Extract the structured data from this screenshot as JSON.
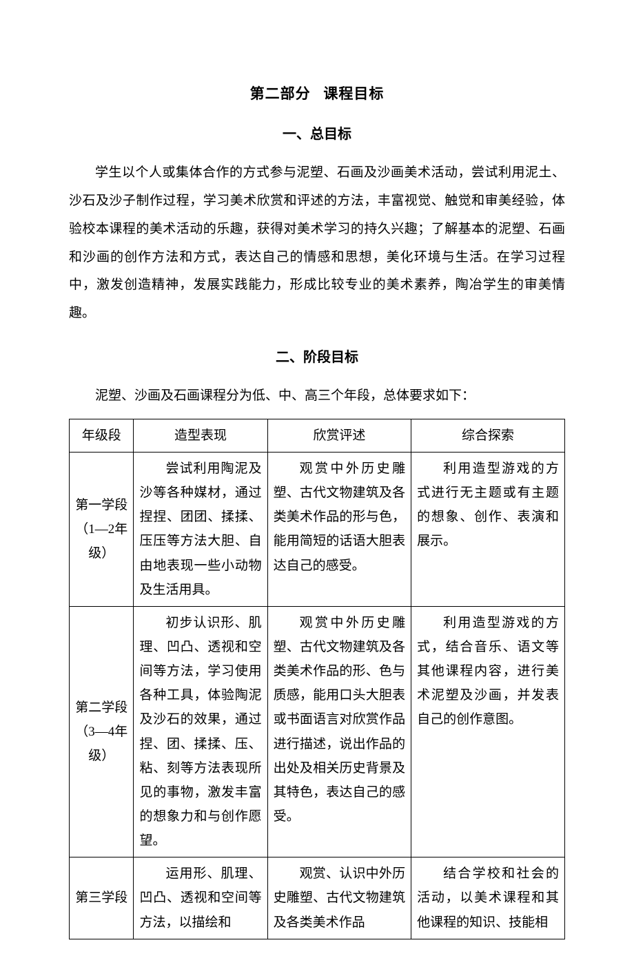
{
  "title_part": "第二部分",
  "title_main": "课程目标",
  "section1_title": "一、总目标",
  "section1_body": "学生以个人或集体合作的方式参与泥塑、石画及沙画美术活动，尝试利用泥土、沙石及沙子制作过程，学习美术欣赏和评述的方法，丰富视觉、触觉和审美经验，体验校本课程的美术活动的乐趣，获得对美术学习的持久兴趣；了解基本的泥塑、石画和沙画的创作方法和方式，表达自己的情感和思想，美化环境与生活。在学习过程中，激发创造精神，发展实践能力，形成比较专业的美术素养，陶冶学生的审美情趣。",
  "section2_title": "二、阶段目标",
  "section2_intro": "泥塑、沙画及石画课程分为低、中、高三个年段，总体要求如下：",
  "table": {
    "headers": [
      "年级段",
      "造型表现",
      "欣赏评述",
      "综合探索"
    ],
    "rows": [
      {
        "grade": "第一学段（1—2年级）",
        "col1": "尝试利用陶泥及沙等各种媒材，通过捏捏、团团、揉揉、压压等方法大胆、自由地表现一些小动物及生活用具。",
        "col2": "观赏中外历史雕塑、古代文物建筑及各类美术作品的形与色，能用简短的话语大胆表达自己的感受。",
        "col3": "利用造型游戏的方式进行无主题或有主题的想象、创作、表演和展示。"
      },
      {
        "grade": "第二学段（3—4年级）",
        "col1": "初步认识形、肌理、凹凸、透视和空间等方法，学习使用各种工具，体验陶泥及沙石的效果，通过捏、团、揉揉、压、粘、刻等方法表现所见的事物，激发丰富的想象力和与创作愿望。",
        "col2": "观赏中外历史雕塑、古代文物建筑及各类美术作品的形、色与质感，能用口头大胆表或书面语言对欣赏作品进行描述，说出作品的出处及相关历史背景及其特色，表达自己的感受。",
        "col3": "利用造型游戏的方式，结合音乐、语文等其他课程内容，进行美术泥塑及沙画，并发表自己的创作意图。"
      },
      {
        "grade": "第三学段",
        "col1": "运用形、肌理、凹凸、透视和空间等方法，以描绘和",
        "col2": "观赏、认识中外历史雕塑、古代文物建筑及各类美术作品",
        "col3": "结合学校和社会的活动，以美术课程和其他课程的知识、技能相"
      }
    ]
  }
}
